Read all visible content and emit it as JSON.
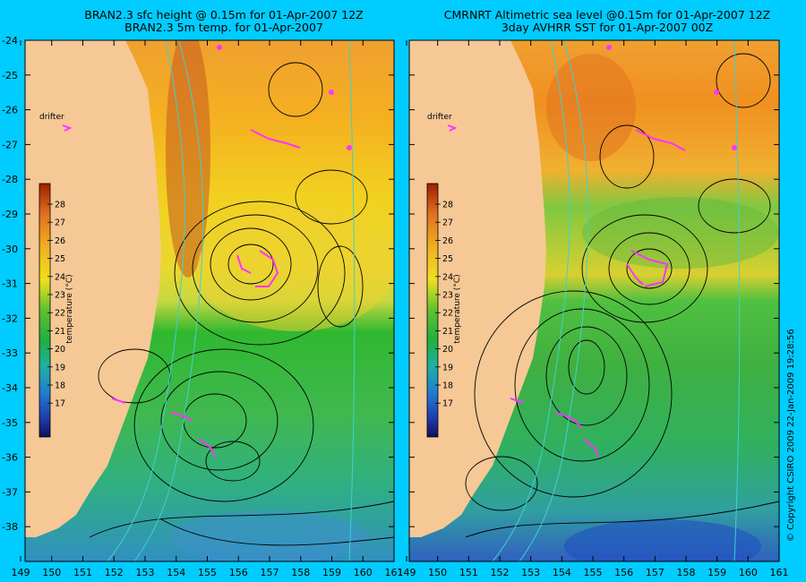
{
  "panels": [
    {
      "title_line1": "BRAN2.3 sfc height @ 0.15m for 01-Apr-2007 12Z",
      "title_line2": "BRAN2.3 5m temp. for 01-Apr-2007",
      "drifter_label": "drifter",
      "colorbar_label": "temperature (°C)"
    },
    {
      "title_line1": "CMRNRT Altimetric sea level  @0.15m  for 01-Apr-2007 12Z",
      "title_line2": "3day AVHRR SST for 01-Apr-2007 00Z",
      "drifter_label": "drifter",
      "colorbar_label": "temperature (°C)"
    }
  ],
  "x_ticks_left": [
    "149",
    "150",
    "151",
    "152",
    "153",
    "154",
    "155",
    "156",
    "157",
    "158",
    "159",
    "160",
    "161"
  ],
  "x_ticks_right": [
    "149",
    "150",
    "151",
    "152",
    "153",
    "154",
    "155",
    "156",
    "157",
    "158",
    "159",
    "160",
    "161"
  ],
  "y_ticks": [
    "-24",
    "-25",
    "-26",
    "-27",
    "-28",
    "-29",
    "-30",
    "-31",
    "-32",
    "-33",
    "-34",
    "-35",
    "-36",
    "-37",
    "-38"
  ],
  "colorbar_ticks": [
    "28",
    "27",
    "26",
    "25",
    "24",
    "23",
    "22",
    "21",
    "20",
    "19",
    "18",
    "17"
  ],
  "copyright": "© Copyright CSIRO 2009   22-Jan-2009 19:28:56",
  "colors": {
    "background": "#00ccff",
    "land": "#f5c896",
    "contour": "#000000",
    "isobath": "#40d0d0",
    "drifter": "#ff33ff"
  },
  "map_data": {
    "lon_range": [
      149,
      161
    ],
    "lat_range": [
      -38,
      -24
    ]
  }
}
